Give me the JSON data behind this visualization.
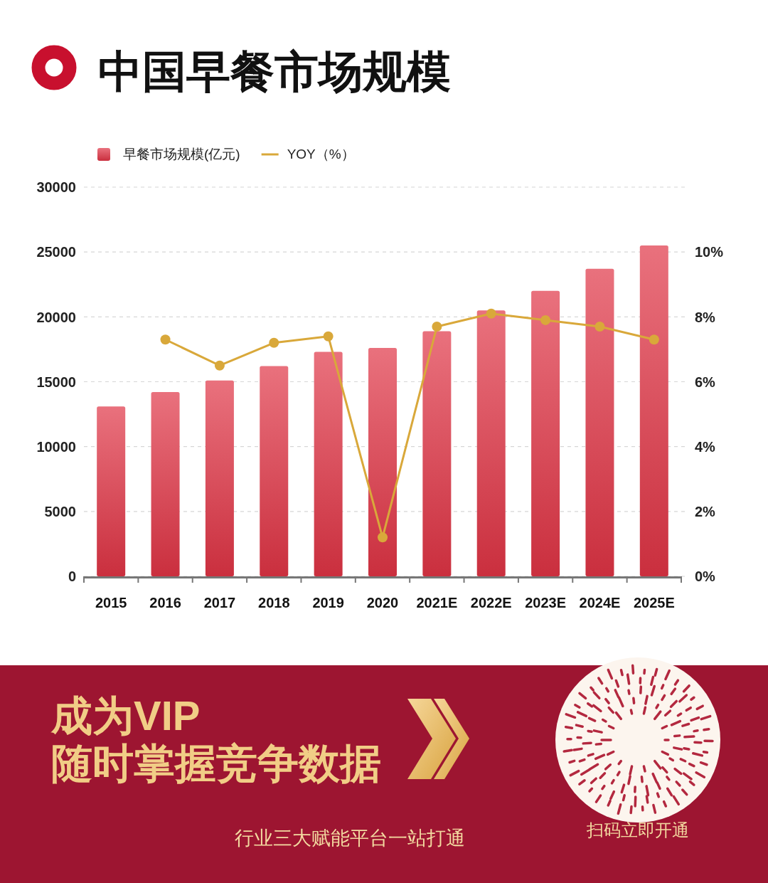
{
  "chart_data": {
    "type": "bar",
    "title": "中国早餐市场规模",
    "categories": [
      "2015",
      "2016",
      "2017",
      "2018",
      "2019",
      "2020",
      "2021E",
      "2022E",
      "2023E",
      "2024E",
      "2025E"
    ],
    "series": [
      {
        "name": "早餐市场规模(亿元)",
        "color": "#e03445",
        "values": [
          13100,
          14200,
          15100,
          16200,
          17300,
          17600,
          18900,
          20500,
          22000,
          23700,
          25500
        ]
      },
      {
        "name": "YOY（%）",
        "type": "line",
        "axis": "y2",
        "color": "#d9a83a",
        "values": [
          null,
          7.3,
          6.5,
          7.2,
          7.4,
          1.2,
          7.7,
          8.1,
          7.9,
          7.7,
          7.3
        ]
      }
    ],
    "ylim": [
      0,
      30000
    ],
    "yticks": [
      0,
      5000,
      10000,
      15000,
      20000,
      25000,
      30000
    ],
    "y2lim": [
      0,
      12
    ],
    "y2ticks": [
      {
        "value": 0,
        "label": "0%"
      },
      {
        "value": 2,
        "label": "2%"
      },
      {
        "value": 4,
        "label": "4%"
      },
      {
        "value": 6,
        "label": "6%"
      },
      {
        "value": 8,
        "label": "8%"
      },
      {
        "value": 10,
        "label": "10%"
      }
    ],
    "grid": "y",
    "legend": "top left",
    "marker": "circle",
    "line_style": "solid",
    "annotations": [
      "成为VIP",
      "随时掌握竞争数据",
      "行业三大赋能平台一站打通",
      "扫码立即开通"
    ]
  }
}
